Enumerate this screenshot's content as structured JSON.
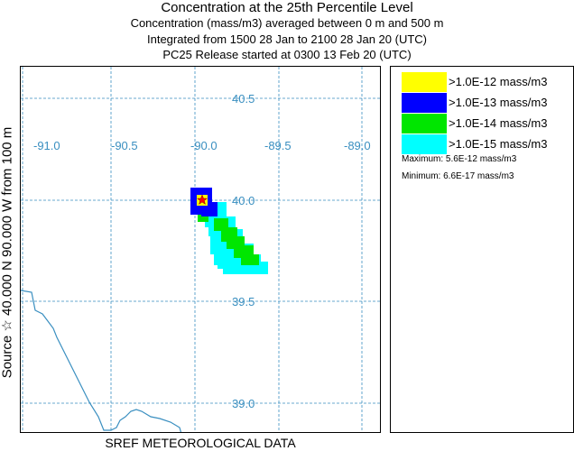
{
  "title": {
    "main": "Concentration at the 25th Percentile Level",
    "line2": "Concentration (mass/m3) averaged between     0 m and   500 m",
    "line3": "Integrated from 1500 28 Jan to 2100 28 Jan 20 (UTC)",
    "line4": "PC25 Release started at 0300 13 Feb 20 (UTC)"
  },
  "side_label": "Source ☆ 40.000  N  90.000  W    from   100 m",
  "bottom_label": "SREF METEOROLOGICAL DATA",
  "map": {
    "longitude_labels": [
      "-91.0",
      "-90.5",
      "-90.0",
      "-89.5",
      "-89.0"
    ],
    "latitude_labels": [
      "40.5",
      "40.0",
      "39.5",
      "39.0"
    ],
    "grid_color": "#3a8fc0",
    "coast_color": "#3a8fc0",
    "source_marker": "star"
  },
  "legend": {
    "items": [
      {
        "label": ">1.0E-12 mass/m3",
        "color": "#ffff00"
      },
      {
        "label": ">1.0E-13 mass/m3",
        "color": "#0000ff"
      },
      {
        "label": ">1.0E-14 mass/m3",
        "color": "#00e600"
      },
      {
        "label": ">1.0E-15 mass/m3",
        "color": "#00ffff"
      }
    ],
    "maximum": "Maximum: 5.6E-12 mass/m3",
    "minimum": "Minimum: 6.6E-17 mass/m3"
  }
}
